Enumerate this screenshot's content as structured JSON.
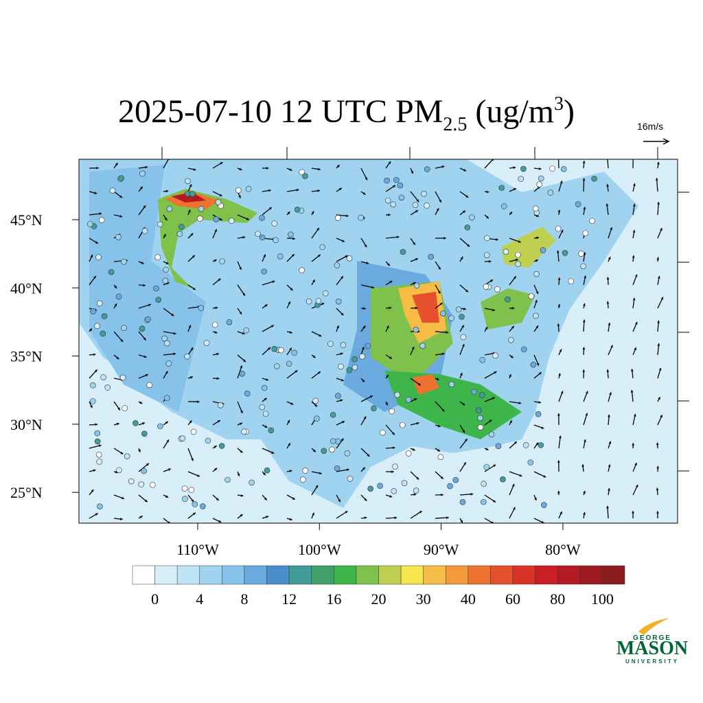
{
  "title": {
    "main": "2025-07-10 12 UTC PM",
    "sub": "2.5",
    "unit": " (ug/m",
    "sup": "3",
    "close": ")"
  },
  "vector_reference": "16m/s",
  "lat_labels": [
    "45°N",
    "40°N",
    "35°N",
    "30°N",
    "25°N"
  ],
  "lon_labels": [
    "110°W",
    "100°W",
    "90°W",
    "80°W"
  ],
  "colorbar": {
    "colors": [
      "#ffffff",
      "#d8eef9",
      "#bde3f5",
      "#9fd3f0",
      "#86c2ea",
      "#6aaadf",
      "#4a8dcc",
      "#449c9a",
      "#41a06a",
      "#3db54a",
      "#7fc14a",
      "#bfd051",
      "#f6e54c",
      "#f5bd45",
      "#f39a3d",
      "#ee7330",
      "#e4512c",
      "#d93328",
      "#c91e26",
      "#b31a22",
      "#9c1a1f",
      "#8b1a1c"
    ],
    "labels": [
      "0",
      "4",
      "8",
      "12",
      "16",
      "20",
      "30",
      "40",
      "60",
      "80",
      "100"
    ]
  },
  "logo": {
    "top": "GEORGE",
    "name": "MASON",
    "bottom": "UNIVERSITY"
  }
}
